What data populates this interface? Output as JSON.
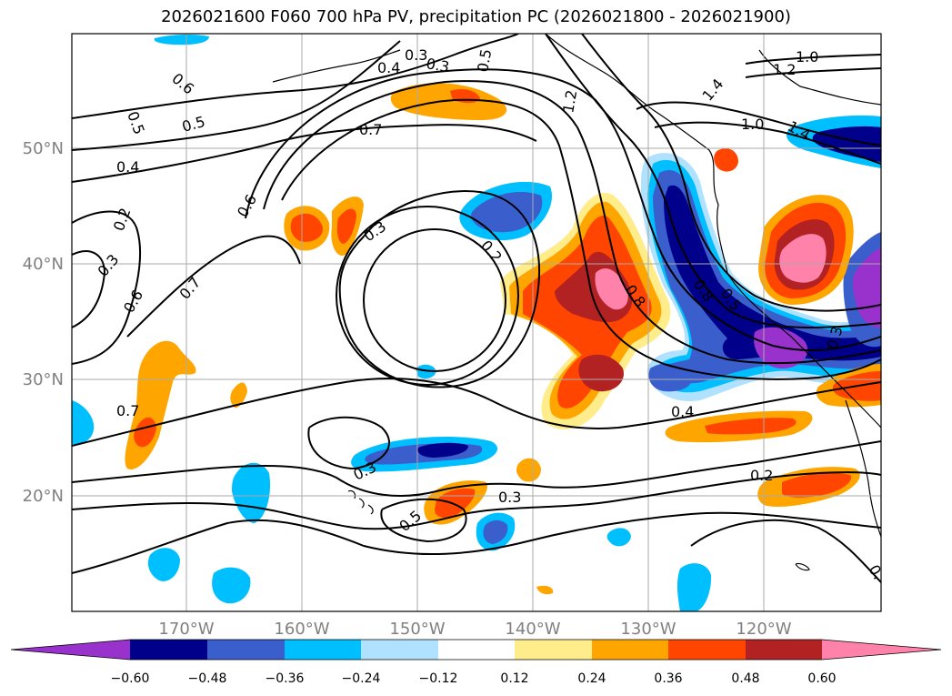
{
  "title": "2026021600 F060 700 hPa PV, precipitation PC (2026021800 - 2026021900)",
  "map": {
    "lat_ticks": [
      "50°N",
      "40°N",
      "30°N",
      "20°N"
    ],
    "lon_ticks": [
      "170°W",
      "160°W",
      "150°W",
      "140°W",
      "130°W",
      "120°W"
    ],
    "contour_labels": [
      "0.3",
      "0.4",
      "0.5",
      "0.5",
      "0.6",
      "0.5",
      "0.7",
      "0.4",
      "0.2",
      "0.3",
      "0.6",
      "0.6",
      "0.7",
      "0.7",
      "0.3",
      "0.2",
      "0.8",
      "1.2",
      "1.0",
      "1.2",
      "1.4",
      "1.0",
      "1.4",
      "0.4",
      "0.2",
      "0.3",
      "0.3",
      "0.5",
      "0.8",
      "0.5",
      "0.3",
      "0.3",
      "0."
    ]
  },
  "colorbar": {
    "labels": [
      "−0.60",
      "−0.48",
      "−0.36",
      "−0.24",
      "−0.12",
      "0.12",
      "0.24",
      "0.36",
      "0.48",
      "0.60"
    ],
    "colors": [
      "#9932cc",
      "#00008b",
      "#3a5fcd",
      "#00bfff",
      "#b0e2ff",
      "#ffffff",
      "#ffec8b",
      "#ffa500",
      "#ff4500",
      "#b22222",
      "#ff82ab"
    ]
  },
  "colors": {
    "purple": "#9932cc",
    "navy": "#00008b",
    "blue": "#3a5fcd",
    "cyan": "#00bfff",
    "lightblue": "#b0e2ff",
    "yellow": "#ffec8b",
    "orange": "#ffa500",
    "redorange": "#ff4500",
    "firebrick": "#b22222",
    "pink": "#ff82ab"
  }
}
